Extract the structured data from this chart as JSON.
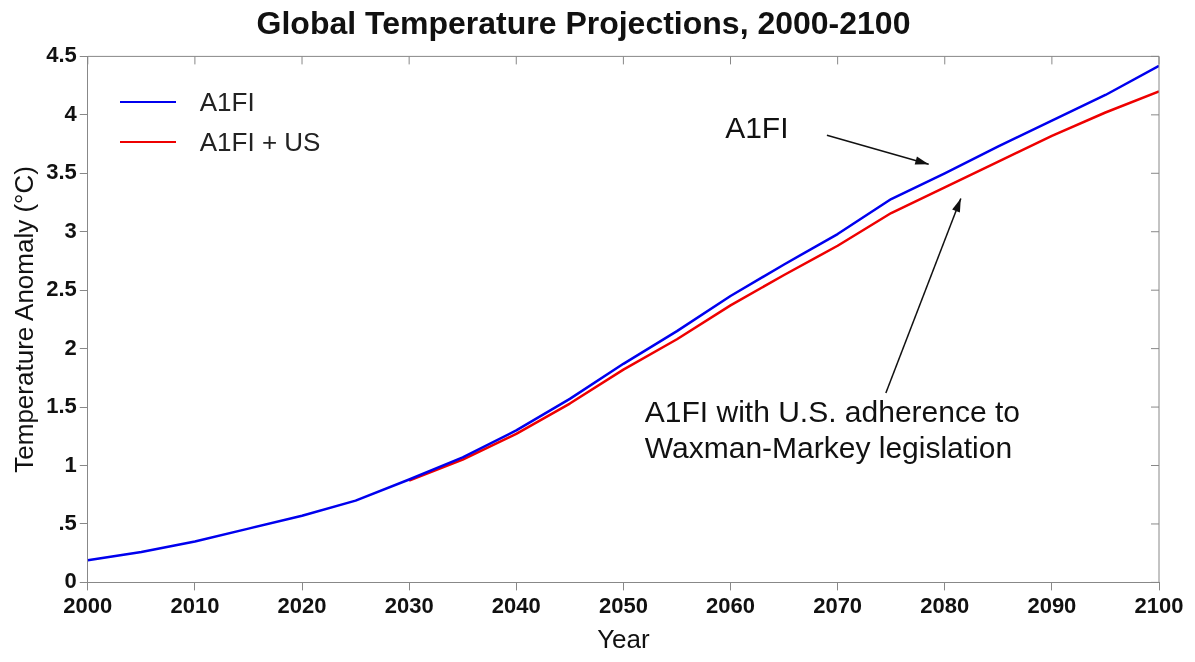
{
  "chart_data": {
    "type": "line",
    "title": "Global Temperature Projections, 2000-2100",
    "xlabel": "Year",
    "ylabel": "Temperature Anomaly (°C)",
    "x": [
      2000,
      2005,
      2010,
      2015,
      2020,
      2025,
      2030,
      2035,
      2040,
      2045,
      2050,
      2055,
      2060,
      2065,
      2070,
      2075,
      2080,
      2085,
      2090,
      2095,
      2100
    ],
    "series": [
      {
        "name": "A1FI",
        "color": "#0000ee",
        "values": [
          0.19,
          0.26,
          0.35,
          0.46,
          0.57,
          0.7,
          0.88,
          1.07,
          1.3,
          1.57,
          1.87,
          2.15,
          2.45,
          2.72,
          2.98,
          3.28,
          3.5,
          3.73,
          3.95,
          4.17,
          4.42
        ]
      },
      {
        "name": "A1FI + US",
        "color": "#ee0000",
        "values": [
          null,
          null,
          null,
          null,
          null,
          null,
          0.87,
          1.05,
          1.27,
          1.53,
          1.82,
          2.08,
          2.37,
          2.63,
          2.88,
          3.16,
          3.38,
          3.6,
          3.82,
          4.02,
          4.2
        ]
      }
    ],
    "xlim": [
      2000,
      2100
    ],
    "xticks": [
      2000,
      2010,
      2020,
      2030,
      2040,
      2050,
      2060,
      2070,
      2080,
      2090,
      2100
    ],
    "ylim": [
      0,
      4.5
    ],
    "yticks": [
      0,
      {
        "value": 0.5,
        "label": ".5"
      },
      1,
      1.5,
      2,
      2.5,
      3,
      3.5,
      4,
      4.5
    ],
    "annotations": [
      "A1FI",
      "A1FI with U.S. adherence to\nWaxman-Markey legislation"
    ],
    "grid": false,
    "legend": "top left",
    "marker": "none",
    "line_style": "solid"
  }
}
